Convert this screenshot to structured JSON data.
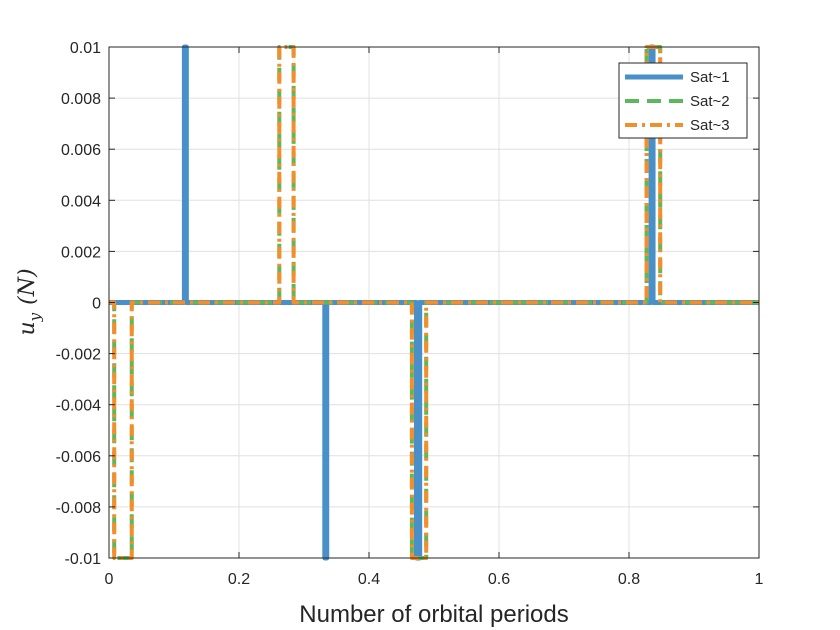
{
  "chart_data": {
    "type": "line",
    "title": "",
    "xlabel": "Number of orbital periods",
    "ylabel": {
      "main": "u",
      "sub": "y",
      "unit": "(N)"
    },
    "xlim": [
      0,
      1
    ],
    "ylim": [
      -0.01,
      0.01
    ],
    "xticks": [
      0,
      0.2,
      0.4,
      0.6,
      0.8,
      1
    ],
    "xtick_labels": [
      "0",
      "0.2",
      "0.4",
      "0.6",
      "0.8",
      "1"
    ],
    "yticks": [
      0.01,
      0.008,
      0.006,
      0.004,
      0.002,
      0,
      -0.002,
      -0.004,
      -0.006,
      -0.008,
      -0.01
    ],
    "ytick_labels": [
      "0.01",
      "0.008",
      "0.006",
      "0.004",
      "0.002",
      "0",
      "-0.002",
      "-0.004",
      "-0.006",
      "-0.008",
      "-0.01"
    ],
    "grid": true,
    "legend_position": "top-right",
    "series": [
      {
        "name": "Sat~1",
        "color": "#4A90C8",
        "style": "solid",
        "x": [
          0,
          0.116,
          0.116,
          0.119,
          0.119,
          0.332,
          0.332,
          0.335,
          0.335,
          0.473,
          0.473,
          0.478,
          0.478,
          0.834,
          0.834,
          0.837,
          0.837,
          1
        ],
        "y": [
          0,
          0,
          0.01,
          0.01,
          0,
          0,
          -0.01,
          -0.01,
          0,
          0,
          -0.01,
          -0.01,
          0,
          0,
          0.01,
          0.01,
          0,
          0
        ]
      },
      {
        "name": "Sat~2",
        "color": "#5CB85C",
        "style": "dashed",
        "x": [
          0,
          0.008,
          0.008,
          0.035,
          0.035,
          0.262,
          0.262,
          0.284,
          0.284,
          0.466,
          0.466,
          0.488,
          0.488,
          0.827,
          0.827,
          0.848,
          0.848,
          1
        ],
        "y": [
          0,
          0,
          -0.01,
          -0.01,
          0,
          0,
          0.01,
          0.01,
          0,
          0,
          -0.01,
          -0.01,
          0,
          0,
          0.01,
          0.01,
          0,
          0
        ]
      },
      {
        "name": "Sat~3",
        "color": "#F28E2B",
        "style": "dashdot",
        "x": [
          0,
          0.008,
          0.008,
          0.035,
          0.035,
          0.262,
          0.262,
          0.284,
          0.284,
          0.466,
          0.466,
          0.488,
          0.488,
          0.827,
          0.827,
          0.848,
          0.848,
          1
        ],
        "y": [
          0,
          0,
          -0.01,
          -0.01,
          0,
          0,
          0.01,
          0.01,
          0,
          0,
          -0.01,
          -0.01,
          0,
          0,
          0.01,
          0.01,
          0,
          0
        ]
      }
    ]
  }
}
